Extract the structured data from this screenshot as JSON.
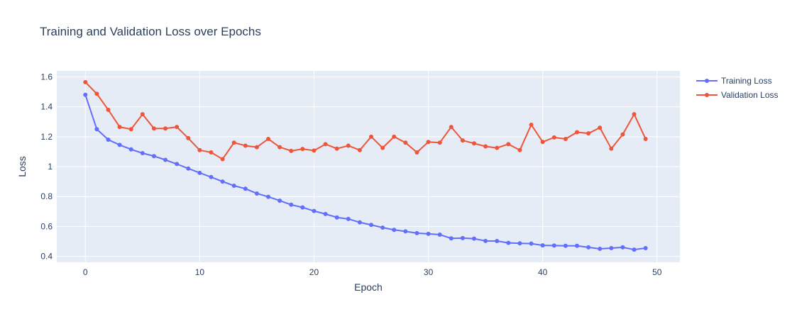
{
  "chart_data": {
    "type": "line",
    "title": "Training and Validation Loss over Epochs",
    "xlabel": "Epoch",
    "ylabel": "Loss",
    "xlim": [
      -2.5,
      52
    ],
    "ylim": [
      0.36,
      1.64
    ],
    "xticks": [
      0,
      10,
      20,
      30,
      40,
      50
    ],
    "yticks": [
      0.4,
      0.6,
      0.8,
      1,
      1.2,
      1.4,
      1.6
    ],
    "ytick_labels": [
      "0.4",
      "0.6",
      "0.8",
      "1",
      "1.2",
      "1.4",
      "1.6"
    ],
    "grid": true,
    "legend_position": "top-right",
    "background_color": "#e5ecf6",
    "x": [
      0,
      1,
      2,
      3,
      4,
      5,
      6,
      7,
      8,
      9,
      10,
      11,
      12,
      13,
      14,
      15,
      16,
      17,
      18,
      19,
      20,
      21,
      22,
      23,
      24,
      25,
      26,
      27,
      28,
      29,
      30,
      31,
      32,
      33,
      34,
      35,
      36,
      37,
      38,
      39,
      40,
      41,
      42,
      43,
      44,
      45,
      46,
      47,
      48,
      49
    ],
    "series": [
      {
        "name": "Training Loss",
        "color": "#636efa",
        "values": [
          1.48,
          1.25,
          1.18,
          1.145,
          1.115,
          1.09,
          1.07,
          1.045,
          1.017,
          0.987,
          0.958,
          0.93,
          0.9,
          0.872,
          0.852,
          0.82,
          0.798,
          0.772,
          0.745,
          0.727,
          0.703,
          0.683,
          0.66,
          0.65,
          0.627,
          0.61,
          0.592,
          0.577,
          0.567,
          0.555,
          0.55,
          0.545,
          0.52,
          0.522,
          0.518,
          0.503,
          0.502,
          0.49,
          0.487,
          0.485,
          0.473,
          0.472,
          0.47,
          0.47,
          0.46,
          0.45,
          0.455,
          0.46,
          0.445,
          0.455
        ]
      },
      {
        "name": "Validation Loss",
        "color": "#ef553b",
        "values": [
          1.565,
          1.487,
          1.38,
          1.265,
          1.25,
          1.35,
          1.255,
          1.255,
          1.265,
          1.19,
          1.11,
          1.095,
          1.05,
          1.16,
          1.14,
          1.13,
          1.185,
          1.13,
          1.105,
          1.118,
          1.107,
          1.15,
          1.12,
          1.14,
          1.11,
          1.2,
          1.125,
          1.2,
          1.16,
          1.095,
          1.165,
          1.16,
          1.265,
          1.175,
          1.155,
          1.135,
          1.125,
          1.15,
          1.11,
          1.28,
          1.165,
          1.195,
          1.185,
          1.23,
          1.222,
          1.26,
          1.12,
          1.215,
          1.35,
          1.185
        ]
      }
    ]
  }
}
